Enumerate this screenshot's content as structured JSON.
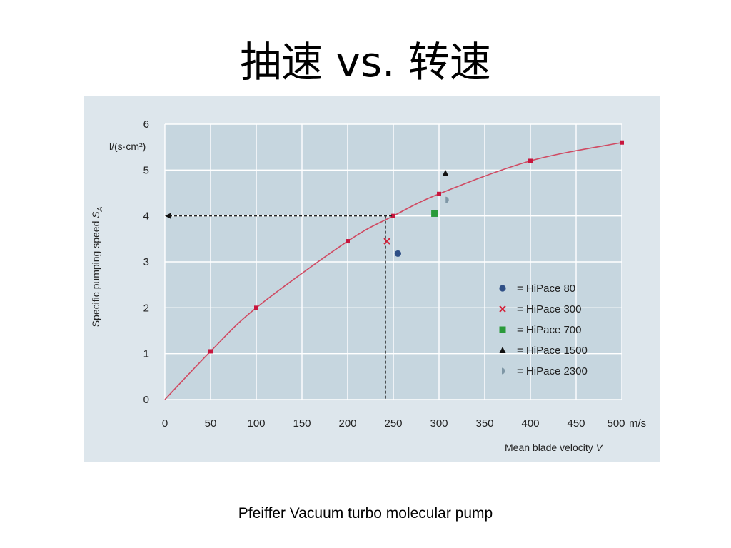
{
  "slide": {
    "title": "抽速 vs. 转速",
    "caption": "Pfeiffer Vacuum turbo molecular pump"
  },
  "colors": {
    "figure_bg": "#dde6ec",
    "plot_bg": "#c6d6df",
    "grid": "#ffffff",
    "curve": "#d04a62",
    "curve_marker": "#c8163e",
    "hipace80": "#2f4f86",
    "hipace300": "#d4243c",
    "hipace700": "#2a9a3a",
    "hipace1500": "#111111",
    "hipace2300": "#7f97a6"
  },
  "chart_data": {
    "type": "scatter",
    "title": "",
    "xlabel": "Mean blade velocity V",
    "ylabel": "Specific pumping speed S",
    "ylabel_subscript": "A",
    "yunit": "l/(s·cm²)",
    "xunit": "m/s",
    "xlim": [
      0,
      500
    ],
    "ylim": [
      0,
      6
    ],
    "xticks": [
      0,
      50,
      100,
      150,
      200,
      250,
      300,
      350,
      400,
      450,
      500
    ],
    "yticks": [
      0,
      1,
      2,
      3,
      4,
      5,
      6
    ],
    "grid": true,
    "legend_position": "bottom-right",
    "curve": {
      "x": [
        0,
        50,
        100,
        200,
        250,
        300,
        400,
        500
      ],
      "y": [
        0,
        1.05,
        2.0,
        3.45,
        4.0,
        4.48,
        5.2,
        5.6
      ]
    },
    "series": [
      {
        "name": "= HiPace 80",
        "marker": "circle",
        "x": [
          255
        ],
        "y": [
          3.18
        ]
      },
      {
        "name": "= HiPace 300",
        "marker": "x",
        "x": [
          243
        ],
        "y": [
          3.45
        ]
      },
      {
        "name": "= HiPace 700",
        "marker": "square",
        "x": [
          295
        ],
        "y": [
          4.05
        ]
      },
      {
        "name": "= HiPace 1500",
        "marker": "triangle",
        "x": [
          307
        ],
        "y": [
          4.93
        ]
      },
      {
        "name": "= HiPace 2300",
        "marker": "half-circle",
        "x": [
          308
        ],
        "y": [
          4.35
        ]
      }
    ],
    "reference_point": {
      "x": 243,
      "y": 4.0,
      "style": "dashed arrow to y-axis"
    }
  }
}
